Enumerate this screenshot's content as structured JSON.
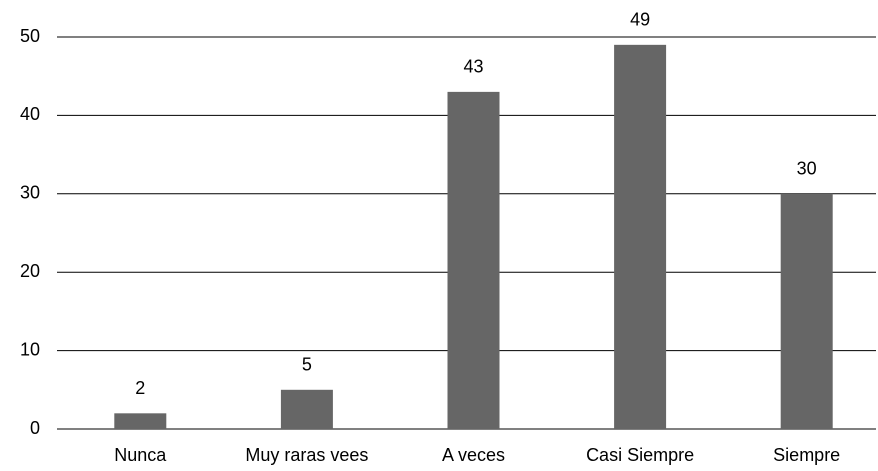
{
  "chart_data": {
    "type": "bar",
    "categories": [
      "Nunca",
      "Muy raras vees",
      "A veces",
      "Casi Siempre",
      "Siempre"
    ],
    "values": [
      2,
      5,
      43,
      49,
      30
    ],
    "color": "#666666",
    "ylim": [
      0,
      50
    ],
    "yticks": [
      0,
      10,
      20,
      30,
      40,
      50
    ],
    "grid": true
  }
}
